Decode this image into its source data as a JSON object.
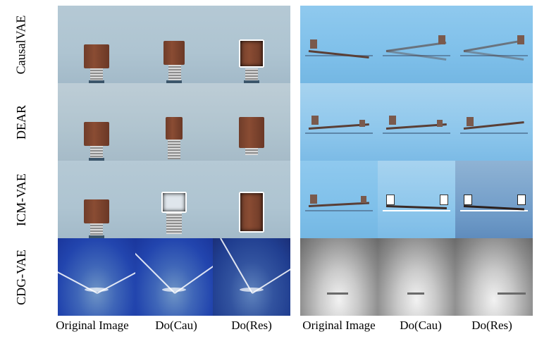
{
  "row_labels": [
    "CausalVAE",
    "DEAR",
    "ICM-VAE",
    "CDG-VAE"
  ],
  "column_labels": {
    "left": [
      "Original Image",
      "Do(Cau)",
      "Do(Res)"
    ],
    "right": [
      "Original Image",
      "Do(Cau)",
      "Do(Res)"
    ]
  }
}
